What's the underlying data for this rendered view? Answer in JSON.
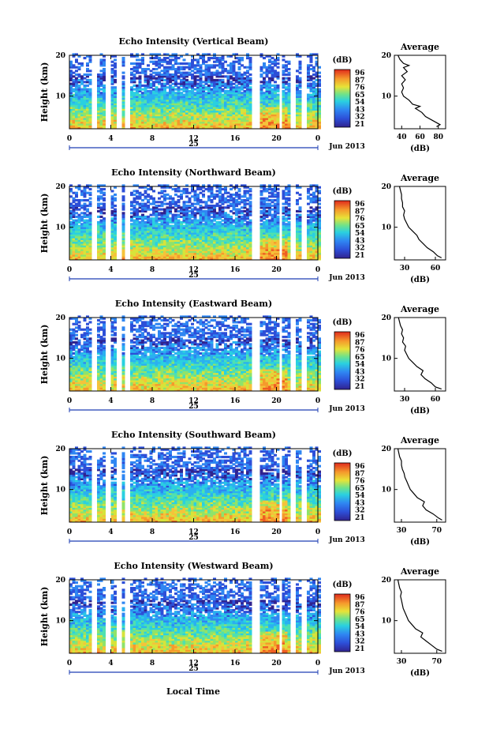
{
  "figure": {
    "date_label": "Jun 2013",
    "day_label": "25",
    "xlabel": "Local Time",
    "colorbar_unit": "(dB)",
    "colorbar_ticks": [
      "96",
      "87",
      "76",
      "65",
      "54",
      "43",
      "32",
      "21"
    ],
    "colors": {
      "axis_day_marker": "#1f3fb3",
      "trace": "#000000"
    }
  },
  "chart_data": [
    {
      "type": "heatmap",
      "title": "Echo Intensity (Vertical Beam)",
      "ylabel": "Height (km)",
      "x_ticks": [
        "0",
        "4",
        "8",
        "12",
        "16",
        "20",
        "0"
      ],
      "xlim": [
        0,
        24
      ],
      "ylim": [
        2,
        20
      ],
      "y_ticks": [
        "20",
        "10"
      ],
      "color_range_db": [
        21,
        96
      ],
      "data_gaps_hours": [
        [
          2.2,
          2.6
        ],
        [
          3.5,
          3.9
        ],
        [
          4.6,
          4.9
        ],
        [
          5.3,
          5.8
        ],
        [
          17.6,
          18.2
        ],
        [
          20.2,
          20.5
        ],
        [
          21.3,
          21.7
        ],
        [
          22.3,
          22.7
        ]
      ],
      "profile": {
        "title": "Average",
        "xlabel": "(dB)",
        "x_ticks": [
          "40",
          "60",
          "80"
        ],
        "xlim": [
          32,
          88
        ],
        "ylim": [
          2,
          20
        ],
        "points": [
          [
            78,
            2.5
          ],
          [
            82,
            3
          ],
          [
            74,
            4
          ],
          [
            66,
            5
          ],
          [
            62,
            6
          ],
          [
            55,
            7
          ],
          [
            60,
            7.5
          ],
          [
            52,
            8
          ],
          [
            48,
            9
          ],
          [
            42,
            10
          ],
          [
            40,
            11
          ],
          [
            42,
            12
          ],
          [
            40,
            13
          ],
          [
            44,
            14
          ],
          [
            40,
            15
          ],
          [
            46,
            16
          ],
          [
            42,
            17
          ],
          [
            48,
            17.5
          ],
          [
            42,
            18
          ],
          [
            38,
            19
          ],
          [
            36,
            20
          ]
        ]
      }
    },
    {
      "type": "heatmap",
      "title": "Echo Intensity (Northward Beam)",
      "ylabel": "Height (km)",
      "x_ticks": [
        "0",
        "4",
        "8",
        "12",
        "16",
        "20",
        "0"
      ],
      "xlim": [
        0,
        24
      ],
      "ylim": [
        2,
        20
      ],
      "y_ticks": [
        "20",
        "10"
      ],
      "color_range_db": [
        21,
        96
      ],
      "data_gaps_hours": [
        [
          2.2,
          2.6
        ],
        [
          3.5,
          3.9
        ],
        [
          4.6,
          4.9
        ],
        [
          5.3,
          5.8
        ],
        [
          17.6,
          18.2
        ],
        [
          20.2,
          20.5
        ],
        [
          21.3,
          21.7
        ],
        [
          22.3,
          22.7
        ]
      ],
      "profile": {
        "title": "Average",
        "xlabel": "(dB)",
        "x_ticks": [
          "30",
          "60"
        ],
        "xlim": [
          20,
          70
        ],
        "ylim": [
          2,
          20
        ],
        "points": [
          [
            66,
            2.5
          ],
          [
            62,
            3
          ],
          [
            58,
            4
          ],
          [
            52,
            5
          ],
          [
            48,
            6
          ],
          [
            44,
            7
          ],
          [
            42,
            8
          ],
          [
            38,
            9
          ],
          [
            34,
            10
          ],
          [
            32,
            11
          ],
          [
            30,
            12
          ],
          [
            29,
            13
          ],
          [
            30,
            14
          ],
          [
            28,
            15
          ],
          [
            28,
            16
          ],
          [
            27,
            17
          ],
          [
            27,
            18
          ],
          [
            26,
            19
          ],
          [
            25,
            20
          ]
        ]
      }
    },
    {
      "type": "heatmap",
      "title": "Echo Intensity (Eastward Beam)",
      "ylabel": "Height (km)",
      "x_ticks": [
        "0",
        "4",
        "8",
        "12",
        "16",
        "20",
        "0"
      ],
      "xlim": [
        0,
        24
      ],
      "ylim": [
        2,
        20
      ],
      "y_ticks": [
        "20",
        "10"
      ],
      "color_range_db": [
        21,
        96
      ],
      "data_gaps_hours": [
        [
          2.2,
          2.6
        ],
        [
          3.5,
          3.9
        ],
        [
          4.6,
          4.9
        ],
        [
          5.3,
          5.8
        ],
        [
          17.6,
          18.2
        ],
        [
          20.2,
          20.5
        ],
        [
          21.3,
          21.7
        ],
        [
          22.3,
          22.7
        ]
      ],
      "profile": {
        "title": "Average",
        "xlabel": "(dB)",
        "x_ticks": [
          "30",
          "60"
        ],
        "xlim": [
          20,
          70
        ],
        "ylim": [
          2,
          20
        ],
        "points": [
          [
            66,
            2.5
          ],
          [
            60,
            3
          ],
          [
            56,
            4
          ],
          [
            50,
            5
          ],
          [
            46,
            6
          ],
          [
            48,
            7
          ],
          [
            42,
            8
          ],
          [
            38,
            9
          ],
          [
            34,
            10
          ],
          [
            32,
            11
          ],
          [
            30,
            12
          ],
          [
            31,
            13
          ],
          [
            28,
            14
          ],
          [
            29,
            15
          ],
          [
            27,
            16
          ],
          [
            28,
            17
          ],
          [
            26,
            18
          ],
          [
            25,
            19
          ],
          [
            24,
            20
          ]
        ]
      }
    },
    {
      "type": "heatmap",
      "title": "Echo Intensity (Southward Beam)",
      "ylabel": "Height (km)",
      "x_ticks": [
        "0",
        "4",
        "8",
        "12",
        "16",
        "20",
        "0"
      ],
      "xlim": [
        0,
        24
      ],
      "ylim": [
        2,
        20
      ],
      "y_ticks": [
        "20",
        "10"
      ],
      "color_range_db": [
        21,
        96
      ],
      "data_gaps_hours": [
        [
          2.2,
          2.6
        ],
        [
          3.5,
          3.9
        ],
        [
          4.6,
          4.9
        ],
        [
          5.3,
          5.8
        ],
        [
          17.6,
          18.2
        ],
        [
          20.2,
          20.5
        ],
        [
          21.3,
          21.7
        ],
        [
          22.3,
          22.7
        ]
      ],
      "profile": {
        "title": "Average",
        "xlabel": "(dB)",
        "x_ticks": [
          "30",
          "70"
        ],
        "xlim": [
          22,
          80
        ],
        "ylim": [
          2,
          20
        ],
        "points": [
          [
            76,
            2.5
          ],
          [
            72,
            3
          ],
          [
            66,
            4
          ],
          [
            58,
            5
          ],
          [
            54,
            6
          ],
          [
            56,
            7
          ],
          [
            48,
            8
          ],
          [
            44,
            9
          ],
          [
            40,
            10
          ],
          [
            38,
            11
          ],
          [
            36,
            12
          ],
          [
            34,
            13
          ],
          [
            33,
            14
          ],
          [
            31,
            15
          ],
          [
            30,
            16
          ],
          [
            30,
            17
          ],
          [
            28,
            18
          ],
          [
            27,
            19
          ],
          [
            26,
            20
          ]
        ]
      }
    },
    {
      "type": "heatmap",
      "title": "Echo Intensity (Westward Beam)",
      "ylabel": "Height (km)",
      "x_ticks": [
        "0",
        "4",
        "8",
        "12",
        "16",
        "20",
        "0"
      ],
      "xlim": [
        0,
        24
      ],
      "ylim": [
        2,
        20
      ],
      "y_ticks": [
        "20",
        "10"
      ],
      "color_range_db": [
        21,
        96
      ],
      "data_gaps_hours": [
        [
          2.2,
          2.6
        ],
        [
          3.5,
          3.9
        ],
        [
          4.6,
          4.9
        ],
        [
          5.3,
          5.8
        ],
        [
          17.6,
          18.2
        ],
        [
          20.2,
          20.5
        ],
        [
          21.3,
          21.7
        ],
        [
          22.3,
          22.7
        ]
      ],
      "profile": {
        "title": "Average",
        "xlabel": "(dB)",
        "x_ticks": [
          "30",
          "70"
        ],
        "xlim": [
          22,
          80
        ],
        "ylim": [
          2,
          20
        ],
        "points": [
          [
            76,
            2.5
          ],
          [
            70,
            3
          ],
          [
            64,
            4
          ],
          [
            58,
            5
          ],
          [
            52,
            6
          ],
          [
            54,
            7
          ],
          [
            46,
            8
          ],
          [
            42,
            9
          ],
          [
            38,
            10
          ],
          [
            36,
            11
          ],
          [
            34,
            12
          ],
          [
            32,
            13
          ],
          [
            31,
            14
          ],
          [
            30,
            15
          ],
          [
            29,
            16
          ],
          [
            30,
            17
          ],
          [
            28,
            18
          ],
          [
            27,
            19
          ],
          [
            26,
            20
          ]
        ]
      }
    }
  ]
}
